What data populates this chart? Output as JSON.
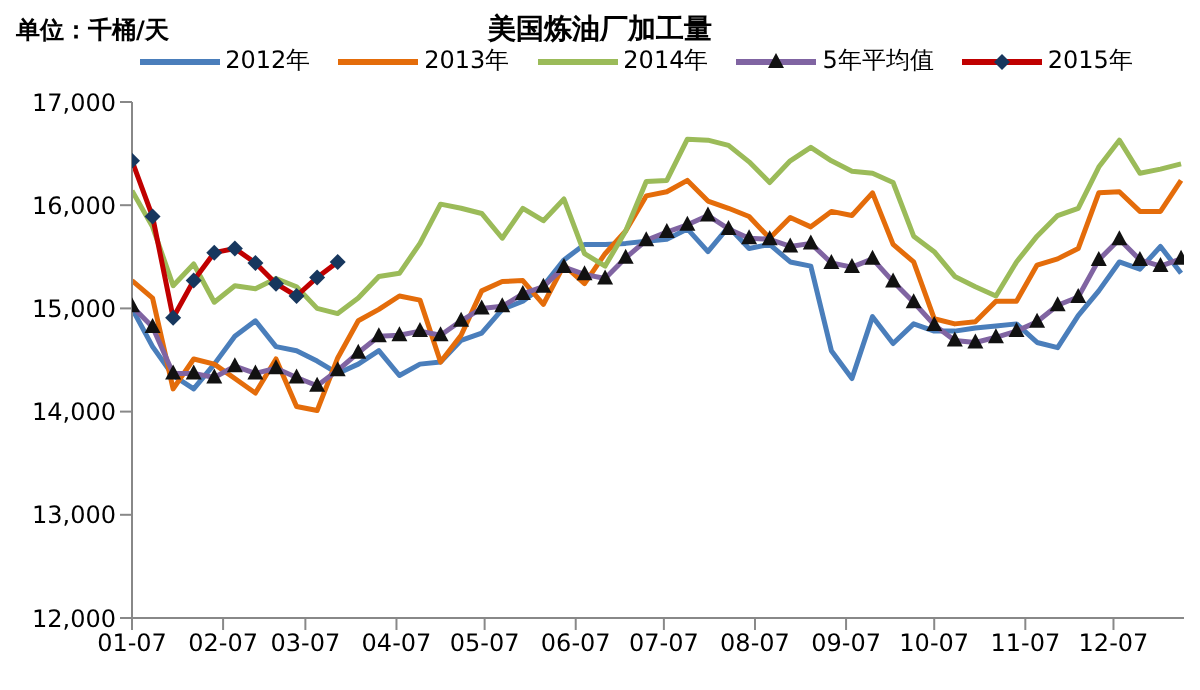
{
  "chart_data": {
    "type": "line",
    "title": "美国炼油厂加工量",
    "annotations": [
      "单位：千桶/天"
    ],
    "x": [
      "--01-07",
      "--01-14",
      "--01-21",
      "--01-28",
      "--02-04",
      "--02-11",
      "--02-18",
      "--02-25",
      "--03-04",
      "--03-11",
      "--03-18",
      "--03-25",
      "--04-01",
      "--04-08",
      "--04-15",
      "--04-22",
      "--04-29",
      "--05-06",
      "--05-13",
      "--05-20",
      "--05-27",
      "--06-03",
      "--06-10",
      "--06-17",
      "--06-24",
      "--07-01",
      "--07-08",
      "--07-15",
      "--07-22",
      "--07-29",
      "--08-05",
      "--08-12",
      "--08-19",
      "--08-26",
      "--09-02",
      "--09-09",
      "--09-16",
      "--09-23",
      "--09-30",
      "--10-07",
      "--10-14",
      "--10-21",
      "--10-28",
      "--11-04",
      "--11-11",
      "--11-18",
      "--11-25",
      "--12-02",
      "--12-09",
      "--12-16",
      "--12-23",
      "--12-30"
    ],
    "series": [
      {
        "name": "2012年",
        "color": "#4a7ebb",
        "marker": "none",
        "values": [
          15000,
          14630,
          14350,
          14220,
          14460,
          14730,
          14880,
          14630,
          14590,
          14490,
          14370,
          14460,
          14590,
          14350,
          14460,
          14480,
          14690,
          14760,
          14990,
          15070,
          15220,
          15470,
          15620,
          15620,
          15630,
          15650,
          15670,
          15770,
          15550,
          15790,
          15580,
          15620,
          15450,
          15410,
          14590,
          14320,
          14920,
          14660,
          14850,
          14780,
          14780,
          14810,
          14830,
          14850,
          14670,
          14620,
          14930,
          15170,
          15450,
          15380,
          15600,
          15340
        ]
      },
      {
        "name": "2013年",
        "color": "#e46c0a",
        "marker": "none",
        "values": [
          15270,
          15100,
          14220,
          14510,
          14460,
          14320,
          14180,
          14510,
          14050,
          14010,
          14520,
          14880,
          14990,
          15120,
          15080,
          14480,
          14740,
          15170,
          15260,
          15270,
          15040,
          15420,
          15240,
          15530,
          15750,
          16090,
          16130,
          16240,
          16040,
          15970,
          15890,
          15680,
          15880,
          15790,
          15940,
          15900,
          16120,
          15620,
          15450,
          14900,
          14850,
          14870,
          15070,
          15070,
          15420,
          15480,
          15580,
          16120,
          16130,
          15940,
          15940,
          16240
        ]
      },
      {
        "name": "2014年",
        "color": "#9bbb59",
        "marker": "none",
        "values": [
          16140,
          15790,
          15220,
          15430,
          15060,
          15220,
          15190,
          15290,
          15210,
          15000,
          14950,
          15100,
          15310,
          15340,
          15630,
          16010,
          15970,
          15920,
          15680,
          15970,
          15850,
          16060,
          15530,
          15410,
          15750,
          16230,
          16240,
          16640,
          16630,
          16580,
          16420,
          16220,
          16430,
          16560,
          16430,
          16330,
          16310,
          16220,
          15700,
          15550,
          15310,
          15210,
          15120,
          15450,
          15700,
          15900,
          15970,
          16370,
          16630,
          16310,
          16350,
          16400
        ]
      },
      {
        "name": "5年平均值",
        "color": "#8064a2",
        "marker": "triangle",
        "values": [
          15020,
          14820,
          14370,
          14370,
          14330,
          14440,
          14370,
          14420,
          14330,
          14250,
          14400,
          14570,
          14730,
          14740,
          14780,
          14740,
          14880,
          15000,
          15020,
          15140,
          15210,
          15400,
          15330,
          15290,
          15490,
          15660,
          15740,
          15810,
          15900,
          15770,
          15680,
          15670,
          15600,
          15630,
          15440,
          15400,
          15480,
          15260,
          15060,
          14840,
          14690,
          14670,
          14720,
          14780,
          14870,
          15030,
          15110,
          15470,
          15670,
          15470,
          15410,
          15480
        ]
      },
      {
        "name": "2015年",
        "color": "#c00000",
        "marker": "diamond",
        "x": [
          "--01-07",
          "--01-14",
          "--01-21",
          "--01-28",
          "--02-04",
          "--02-11",
          "--02-18",
          "--02-25",
          "--03-04",
          "--03-11",
          "--03-18"
        ],
        "values": [
          16430,
          15890,
          14910,
          15270,
          15540,
          15580,
          15440,
          15240,
          15120,
          15300,
          15450
        ]
      }
    ],
    "xlim": [
      "--01-07",
      "--12-31"
    ],
    "xticks": [
      {
        "value": "--01-07",
        "label": "01-07"
      },
      {
        "value": "--02-07",
        "label": "02-07"
      },
      {
        "value": "--03-07",
        "label": "03-07"
      },
      {
        "value": "--04-07",
        "label": "04-07"
      },
      {
        "value": "--05-07",
        "label": "05-07"
      },
      {
        "value": "--06-07",
        "label": "06-07"
      },
      {
        "value": "--07-07",
        "label": "07-07"
      },
      {
        "value": "--08-07",
        "label": "08-07"
      },
      {
        "value": "--09-07",
        "label": "09-07"
      },
      {
        "value": "--10-07",
        "label": "10-07"
      },
      {
        "value": "--11-07",
        "label": "11-07"
      },
      {
        "value": "--12-07",
        "label": "12-07"
      }
    ],
    "ylim": [
      12000,
      17000
    ],
    "yticks": [
      {
        "value": 12000,
        "label": "12,000"
      },
      {
        "value": 13000,
        "label": "13,000"
      },
      {
        "value": 14000,
        "label": "14,000"
      },
      {
        "value": 15000,
        "label": "15,000"
      },
      {
        "value": 16000,
        "label": "16,000"
      },
      {
        "value": 17000,
        "label": "17,000"
      }
    ],
    "grid": false,
    "legend": "top"
  }
}
